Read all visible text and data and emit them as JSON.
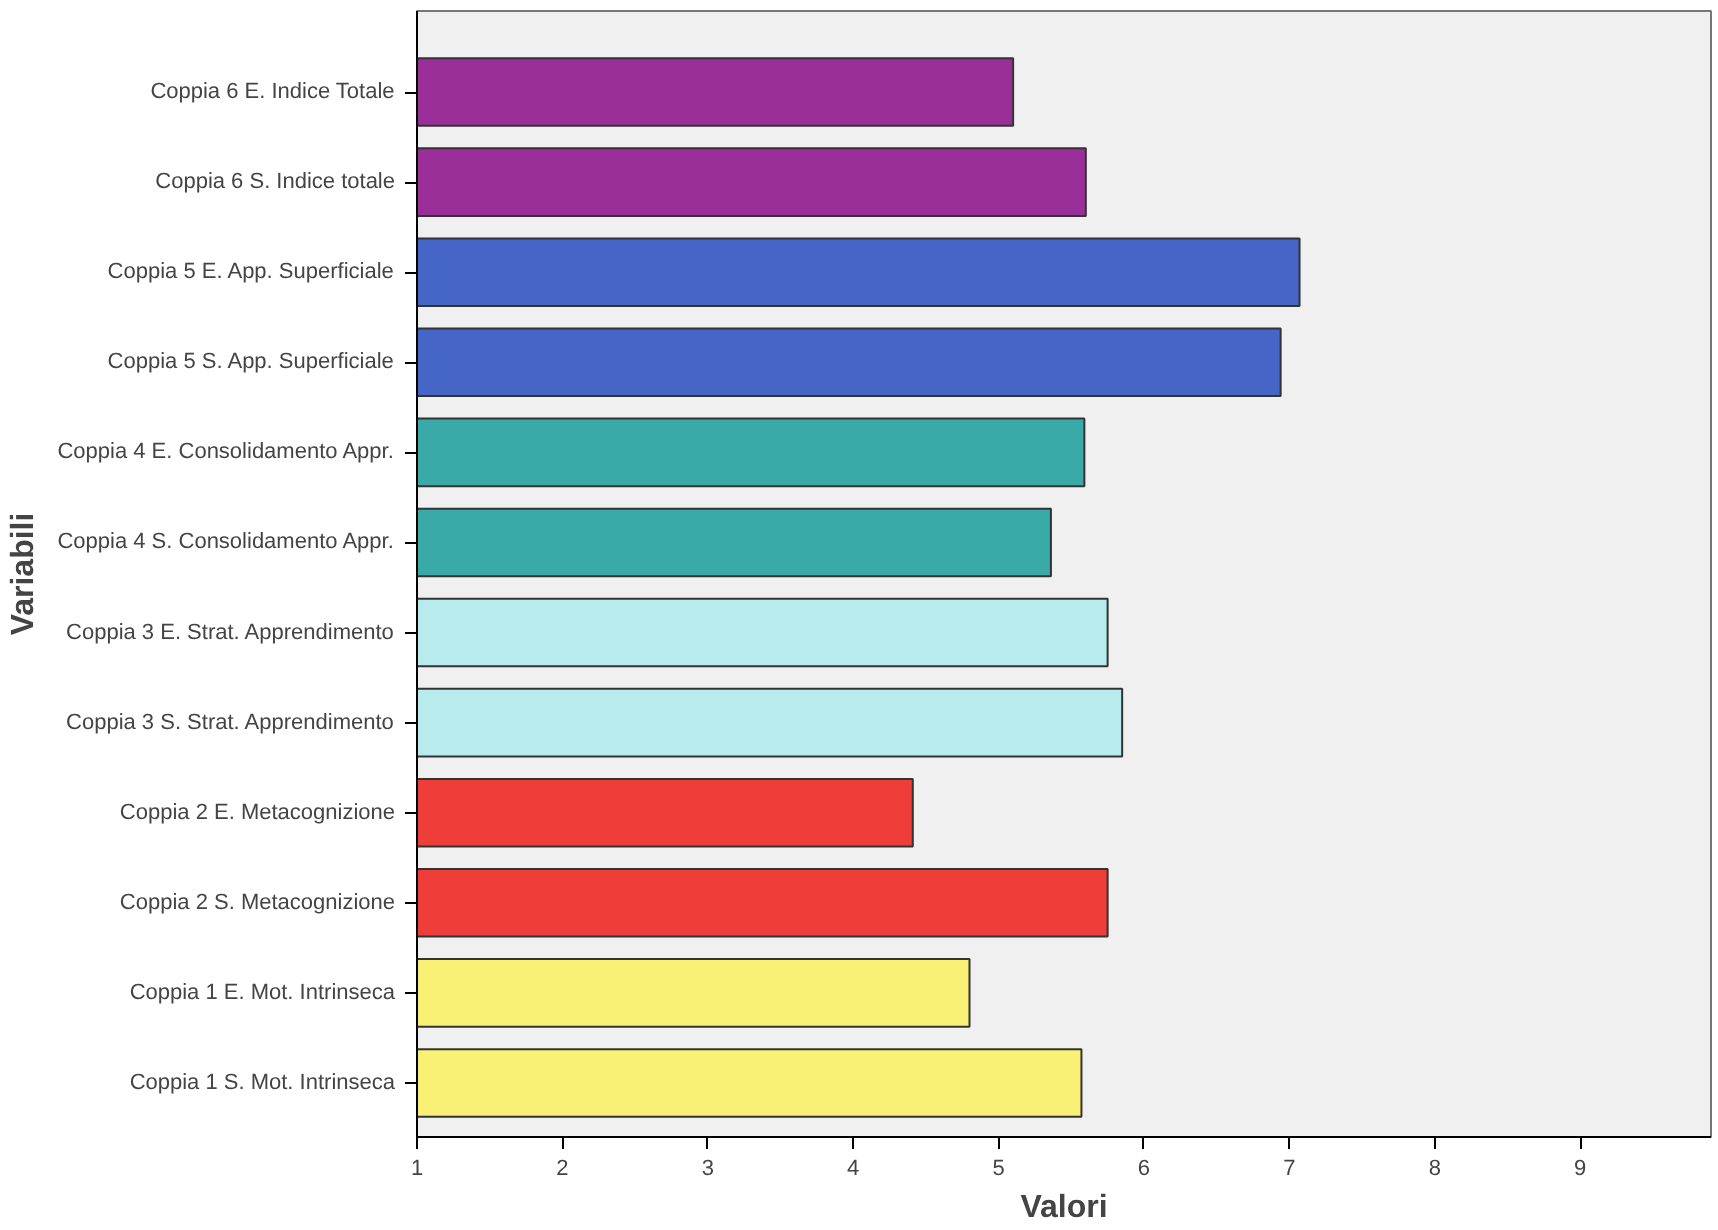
{
  "chart_data": {
    "type": "bar",
    "orientation": "horizontal",
    "xlabel": "Valori",
    "ylabel": "Variabili",
    "categories": [
      "Coppia 6 E. Indice Totale",
      "Coppia 6 S. Indice totale",
      "Coppia 5 E. App. Superficiale",
      "Coppia 5 S. App. Superficiale",
      "Coppia 4 E. Consolidamento Appr.",
      "Coppia 4 S. Consolidamento Appr.",
      "Coppia 3 E. Strat. Apprendimento",
      "Coppia 3 S. Strat. Apprendimento",
      "Coppia 2 E. Metacognizione",
      "Coppia 2 S. Metacognizione",
      "Coppia 1 E. Mot. Intrinseca",
      "Coppia 1 S. Mot. Intrinseca"
    ],
    "values": [
      5.1,
      5.6,
      7.07,
      6.94,
      5.59,
      5.36,
      5.75,
      5.85,
      4.41,
      5.75,
      4.8,
      5.57
    ],
    "colors": [
      "#9b2f9a",
      "#9b2f9a",
      "#4566c6",
      "#4566c6",
      "#3aaaa8",
      "#3aaaa8",
      "#b8ecec",
      "#b8ecec",
      "#ef3d3a",
      "#ef3d3a",
      "#f8f176",
      "#f8f176"
    ],
    "xlim": [
      1,
      9.9
    ],
    "xticks": [
      1,
      2,
      3,
      4,
      5,
      6,
      7,
      8,
      9
    ],
    "grid": false
  }
}
